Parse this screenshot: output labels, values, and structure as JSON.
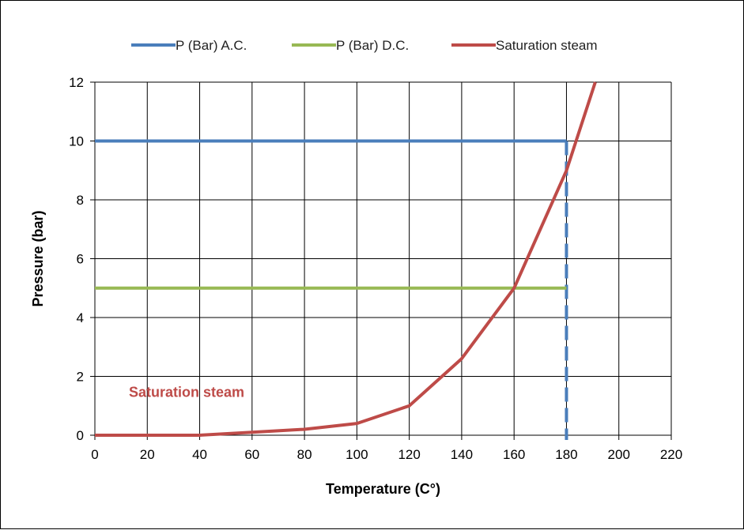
{
  "chart_data": {
    "type": "line",
    "title": "",
    "xlabel": "Temperature (C°)",
    "ylabel": "Pressure (bar)",
    "xlim": [
      0,
      220
    ],
    "ylim": [
      0,
      12
    ],
    "xticks": [
      0,
      20,
      40,
      60,
      80,
      100,
      120,
      140,
      160,
      180,
      200,
      220
    ],
    "yticks": [
      0,
      2,
      4,
      6,
      8,
      10,
      12
    ],
    "grid": true,
    "legend_position": "top",
    "series": [
      {
        "name": "P (Bar) A.C.",
        "color": "#4a7ebb",
        "x": [
          0,
          180
        ],
        "y": [
          10,
          10
        ]
      },
      {
        "name": "P (Bar) D.C.",
        "color": "#98b954",
        "x": [
          0,
          180
        ],
        "y": [
          5,
          5
        ]
      },
      {
        "name": "Saturation steam",
        "color": "#be4b48",
        "x": [
          0,
          20,
          40,
          60,
          80,
          100,
          120,
          140,
          160,
          180,
          191
        ],
        "y": [
          0,
          0,
          0,
          0.1,
          0.2,
          0.4,
          1,
          2.6,
          5,
          9,
          12
        ]
      }
    ],
    "reference_line": {
      "x": 180,
      "y_range": [
        0,
        10
      ],
      "style": "dashed",
      "color": "#4a7ebb"
    },
    "annotations": [
      {
        "text": "Saturation steam",
        "x": 35,
        "y": 1.3,
        "color": "#be4b48"
      }
    ]
  }
}
